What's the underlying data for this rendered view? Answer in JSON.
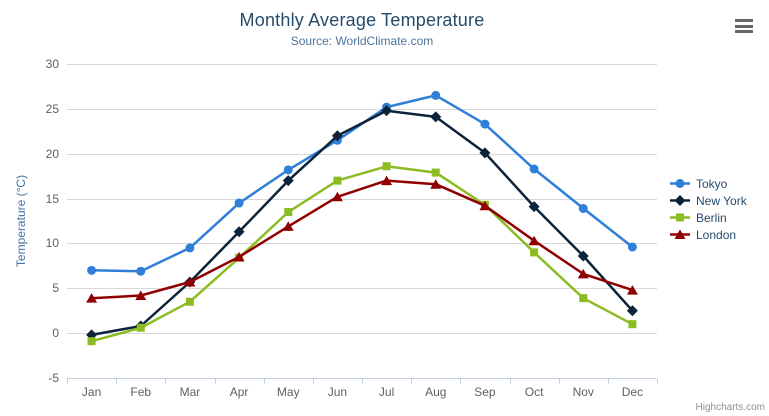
{
  "chart_data": {
    "type": "line",
    "title": "Monthly Average Temperature",
    "subtitle": "Source: WorldClimate.com",
    "xlabel": "",
    "ylabel": "Temperature (°C)",
    "categories": [
      "Jan",
      "Feb",
      "Mar",
      "Apr",
      "May",
      "Jun",
      "Jul",
      "Aug",
      "Sep",
      "Oct",
      "Nov",
      "Dec"
    ],
    "series": [
      {
        "name": "Tokyo",
        "color": "#2f7ed8",
        "marker": "circle",
        "values": [
          7.0,
          6.9,
          9.5,
          14.5,
          18.2,
          21.5,
          25.2,
          26.5,
          23.3,
          18.3,
          13.9,
          9.6
        ]
      },
      {
        "name": "New York",
        "color": "#0d233a",
        "marker": "diamond",
        "values": [
          -0.2,
          0.8,
          5.7,
          11.3,
          17.0,
          22.0,
          24.8,
          24.1,
          20.1,
          14.1,
          8.6,
          2.5
        ]
      },
      {
        "name": "Berlin",
        "color": "#8bbc21",
        "marker": "square",
        "values": [
          -0.9,
          0.6,
          3.5,
          8.4,
          13.5,
          17.0,
          18.6,
          17.9,
          14.3,
          9.0,
          3.9,
          1.0
        ]
      },
      {
        "name": "London",
        "color": "#910000",
        "marker": "triangle",
        "values": [
          3.9,
          4.2,
          5.7,
          8.5,
          11.9,
          15.2,
          17.0,
          16.6,
          14.2,
          10.3,
          6.6,
          4.8
        ]
      }
    ],
    "ylim": [
      -5,
      30
    ],
    "ytick_step": 5,
    "ytick_labels": [
      "-5",
      "0",
      "5",
      "10",
      "15",
      "20",
      "25",
      "30"
    ],
    "grid": true,
    "legend_position": "right",
    "credit": "Highcharts.com",
    "colors": {
      "title_text": "#274b6d",
      "subtitle_text": "#4d759e",
      "axis_label_text": "#606060",
      "axis_title_text": "#4572a7",
      "legend_text": "#274b6d",
      "credit_text": "#909090",
      "grid_line": "#d8d8d8",
      "axis_line": "#c0d0e0",
      "export_icon": "#666666"
    }
  }
}
